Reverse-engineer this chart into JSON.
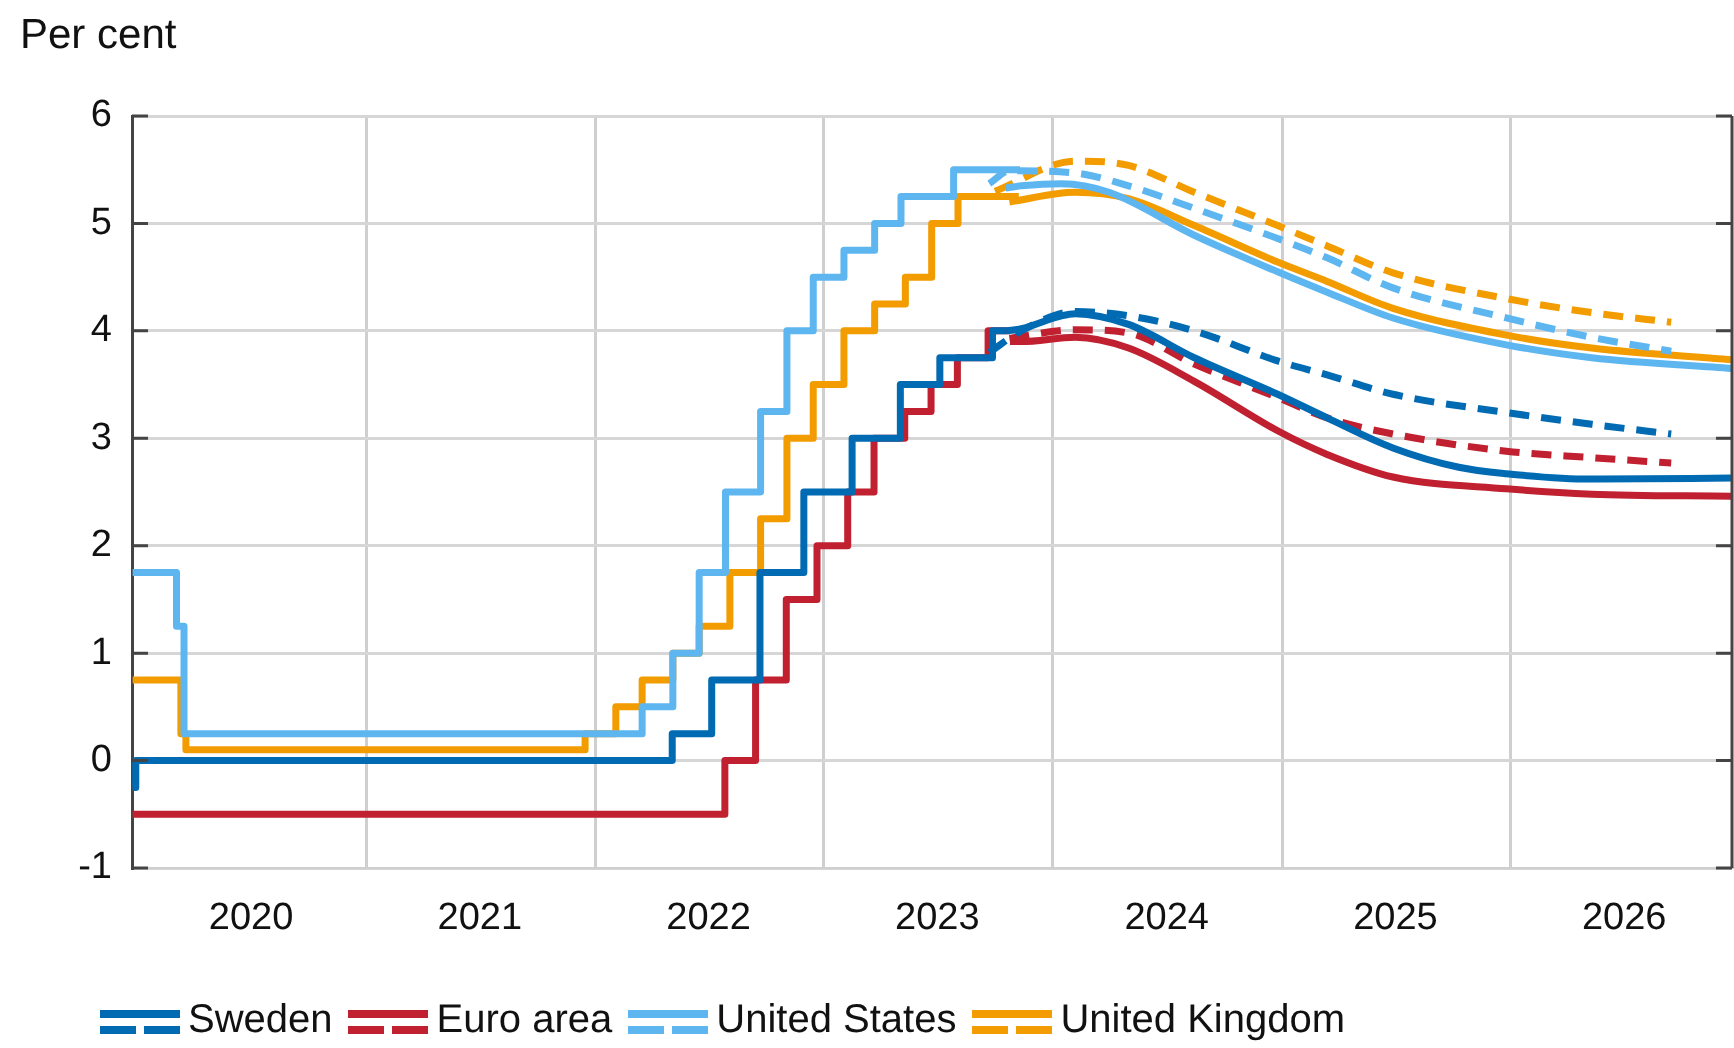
{
  "chart_data": {
    "type": "line",
    "ylabel": "Per cent",
    "xlim": [
      "2019-12-24",
      "2026-12-20"
    ],
    "xticks": [
      {
        "value": "2020-07-01",
        "label": "2020"
      },
      {
        "value": "2021-07-01",
        "label": "2021"
      },
      {
        "value": "2022-07-01",
        "label": "2022"
      },
      {
        "value": "2023-07-01",
        "label": "2023"
      },
      {
        "value": "2024-07-01",
        "label": "2024"
      },
      {
        "value": "2025-07-01",
        "label": "2025"
      },
      {
        "value": "2026-07-01",
        "label": "2026"
      },
      {
        "value": "2021-01-01",
        "label": null
      },
      {
        "value": "2022-01-01",
        "label": null
      },
      {
        "value": "2023-01-01",
        "label": null
      },
      {
        "value": "2024-01-01",
        "label": null
      },
      {
        "value": "2025-01-01",
        "label": null
      },
      {
        "value": "2026-01-01",
        "label": null
      }
    ],
    "ylim": [
      -1,
      6
    ],
    "yticks": [
      -1,
      0,
      1,
      2,
      3,
      4,
      5,
      6
    ],
    "grid": true,
    "legend": "bottom left",
    "marker": "none",
    "series": [
      {
        "name": "Sweden",
        "color": "#006ab3",
        "type": "step",
        "x": [
          "2019-12-25",
          "2019-12-30",
          "2022-05-04",
          "2022-07-06",
          "2022-09-21",
          "2022-11-30",
          "2023-02-15",
          "2023-05-03",
          "2023-07-05",
          "2023-09-27",
          "2023-10-20"
        ],
        "values": [
          -0.25,
          0,
          0.25,
          0.75,
          1.75,
          2.5,
          3,
          3.5,
          3.75,
          4,
          4
        ]
      },
      {
        "color": "#006ab3",
        "type": "line",
        "x": [
          "2023-10-20",
          "2023-11-12",
          "2024-01-15",
          "2024-02-06",
          "2024-05-01",
          "2024-08-14",
          "2024-12-25",
          "2025-03-14",
          "2025-06-27",
          "2025-10-10",
          "2025-12-25",
          "2026-05-10",
          "2026-12-20"
        ],
        "values": [
          4,
          4.02,
          4.14,
          4.16,
          4.06,
          3.75,
          3.41,
          3.19,
          2.91,
          2.73,
          2.67,
          2.62,
          2.63
        ]
      },
      {
        "color": "#006ab3",
        "type": "line",
        "line_style": "dashed",
        "x": [
          "2023-09-22",
          "2023-11-12",
          "2024-02-06",
          "2024-05-01",
          "2024-08-14",
          "2024-12-25",
          "2025-03-14",
          "2025-06-27",
          "2025-12-25",
          "2026-05-10",
          "2026-09-14"
        ],
        "values": [
          3.8,
          4.0,
          4.18,
          4.14,
          4.0,
          3.72,
          3.59,
          3.41,
          3.24,
          3.13,
          3.04
        ]
      },
      {
        "name": "Euro area",
        "color": "#c0202f",
        "type": "step",
        "x": [
          "2019-12-25",
          "2022-07-27",
          "2022-09-14",
          "2022-11-02",
          "2022-12-21",
          "2023-02-08",
          "2023-03-22",
          "2023-05-10",
          "2023-06-21",
          "2023-08-02",
          "2023-09-20",
          "2023-10-25"
        ],
        "values": [
          -0.5,
          0,
          0.75,
          1.5,
          2,
          2.5,
          3,
          3.25,
          3.5,
          3.75,
          4,
          4
        ]
      },
      {
        "color": "#c0202f",
        "type": "line",
        "x": [
          "2023-10-25",
          "2023-11-12",
          "2024-02-06",
          "2024-05-01",
          "2024-08-14",
          "2024-12-25",
          "2025-03-14",
          "2025-06-27",
          "2025-12-25",
          "2026-05-10",
          "2026-12-20"
        ],
        "values": [
          3.9,
          3.9,
          3.94,
          3.84,
          3.53,
          3.07,
          2.85,
          2.64,
          2.53,
          2.48,
          2.46
        ]
      },
      {
        "color": "#c0202f",
        "type": "line",
        "line_style": "dashed",
        "x": [
          "2023-10-24",
          "2024-02-06",
          "2024-05-01",
          "2024-08-14",
          "2024-12-25",
          "2025-03-14",
          "2025-06-27",
          "2025-12-25",
          "2026-05-10",
          "2026-09-14"
        ],
        "values": [
          3.93,
          4.01,
          3.98,
          3.69,
          3.38,
          3.19,
          3.04,
          2.88,
          2.82,
          2.77
        ]
      },
      {
        "name": "United States",
        "color": "#5db6f0",
        "type": "step",
        "x": [
          "2019-12-25",
          "2020-03-04",
          "2020-03-16",
          "2022-03-17",
          "2022-05-05",
          "2022-06-16",
          "2022-07-28",
          "2022-09-22",
          "2022-11-03",
          "2022-12-15",
          "2023-02-02",
          "2023-03-23",
          "2023-05-04",
          "2023-07-27",
          "2023-11-10"
        ],
        "values": [
          1.75,
          1.25,
          0.25,
          0.5,
          1,
          1.75,
          2.5,
          3.25,
          4,
          4.5,
          4.75,
          5,
          5.25,
          5.5,
          5.5
        ]
      },
      {
        "color": "#5db6f0",
        "type": "line",
        "x": [
          "2023-10-18",
          "2023-11-12",
          "2024-01-15",
          "2024-03-31",
          "2024-08-14",
          "2024-12-25",
          "2025-03-14",
          "2025-06-27",
          "2025-12-25",
          "2026-05-10",
          "2026-12-20"
        ],
        "values": [
          5.33,
          5.35,
          5.37,
          5.29,
          4.89,
          4.55,
          4.36,
          4.12,
          3.87,
          3.75,
          3.65
        ]
      },
      {
        "color": "#5db6f0",
        "type": "line",
        "line_style": "dashed",
        "x": [
          "2023-09-22",
          "2023-10-24",
          "2024-02-06",
          "2024-05-01",
          "2024-08-14",
          "2024-12-25",
          "2025-03-14",
          "2025-06-27",
          "2025-12-25",
          "2026-05-10",
          "2026-09-14"
        ],
        "values": [
          5.37,
          5.49,
          5.47,
          5.35,
          5.14,
          4.86,
          4.68,
          4.4,
          4.12,
          3.94,
          3.81
        ]
      },
      {
        "name": "United Kingdom",
        "color": "#f39c00",
        "type": "step",
        "x": [
          "2019-12-25",
          "2020-03-11",
          "2020-03-19",
          "2021-12-16",
          "2022-02-03",
          "2022-03-17",
          "2022-05-05",
          "2022-06-16",
          "2022-08-04",
          "2022-09-22",
          "2022-11-03",
          "2022-12-15",
          "2023-02-02",
          "2023-03-23",
          "2023-05-11",
          "2023-06-22",
          "2023-08-03",
          "2023-11-08"
        ],
        "values": [
          0.75,
          0.25,
          0.1,
          0.25,
          0.5,
          0.75,
          1,
          1.25,
          1.75,
          2.25,
          3,
          3.5,
          4,
          4.25,
          4.5,
          5,
          5.25,
          5.25
        ]
      },
      {
        "color": "#f39c00",
        "type": "line",
        "x": [
          "2023-10-24",
          "2024-02-06",
          "2024-05-01",
          "2024-08-14",
          "2024-12-25",
          "2025-03-14",
          "2025-06-27",
          "2025-12-25",
          "2026-05-10",
          "2026-12-20"
        ],
        "values": [
          5.2,
          5.29,
          5.23,
          4.98,
          4.64,
          4.46,
          4.21,
          3.96,
          3.84,
          3.73
        ]
      },
      {
        "color": "#f39c00",
        "type": "line",
        "line_style": "dashed",
        "x": [
          "2023-10-01",
          "2024-02-06",
          "2024-05-01",
          "2024-08-14",
          "2024-12-25",
          "2025-03-14",
          "2025-06-27",
          "2025-12-25",
          "2026-05-10",
          "2026-09-14"
        ],
        "values": [
          5.3,
          5.58,
          5.54,
          5.29,
          4.98,
          4.79,
          4.54,
          4.3,
          4.17,
          4.08
        ]
      }
    ]
  }
}
